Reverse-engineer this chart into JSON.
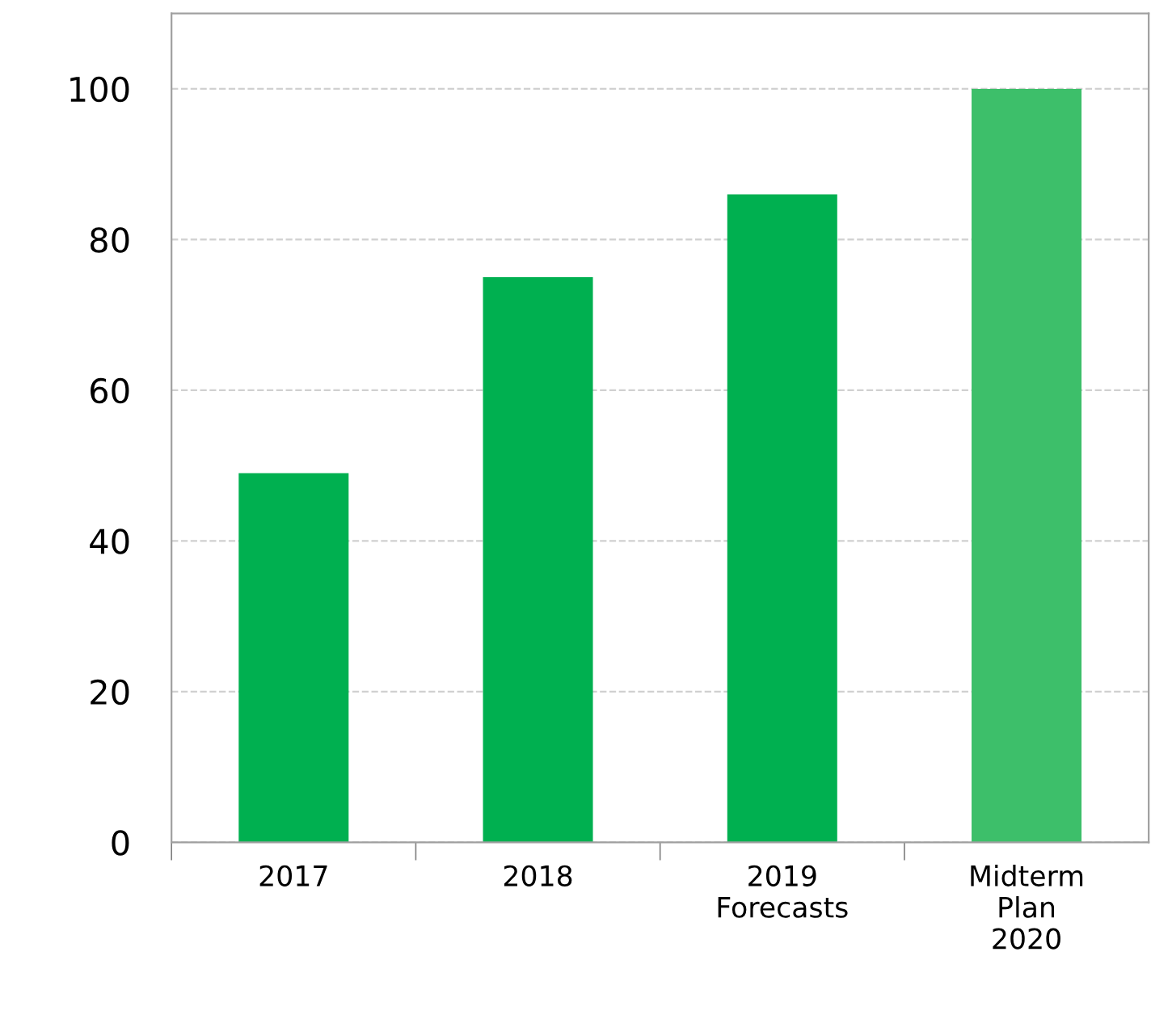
{
  "chart_data": {
    "type": "bar",
    "categories": [
      "2017",
      "2018",
      "2019\nForecasts",
      "Midterm\nPlan\n2020"
    ],
    "values": [
      49,
      75,
      86,
      100
    ],
    "colors": [
      "#00b050",
      "#00b050",
      "#00b050",
      "#3dbf6a"
    ],
    "ylim": [
      0,
      110
    ],
    "yticks": [
      0,
      20,
      40,
      60,
      80,
      100
    ],
    "grid": "y"
  }
}
